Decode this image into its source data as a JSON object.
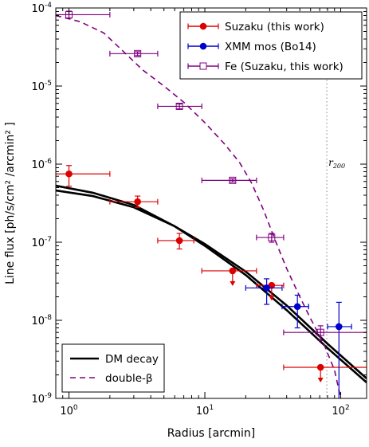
{
  "chart_data": {
    "type": "scatter",
    "xlabel": "Radius [arcmin]",
    "ylabel": "Line flux [ph/s/cm² /arcmin² ]",
    "xscale": "log",
    "yscale": "log",
    "xlim": [
      0.8,
      155
    ],
    "ylim": [
      1e-09,
      0.0001
    ],
    "x_ticks": [
      {
        "value": 1,
        "base": "10",
        "exp": "0"
      },
      {
        "value": 10,
        "base": "10",
        "exp": "1"
      },
      {
        "value": 100,
        "base": "10",
        "exp": "2"
      }
    ],
    "y_ticks": [
      {
        "value": 1e-09,
        "base": "10",
        "exp": "-9"
      },
      {
        "value": 1e-08,
        "base": "10",
        "exp": "-8"
      },
      {
        "value": 1e-07,
        "base": "10",
        "exp": "-7"
      },
      {
        "value": 1e-06,
        "base": "10",
        "exp": "-6"
      },
      {
        "value": 1e-05,
        "base": "10",
        "exp": "-5"
      },
      {
        "value": 0.0001,
        "base": "10",
        "exp": "-4"
      }
    ],
    "grid": false,
    "legend_upper_position": "top-right",
    "legend_lower_position": "bottom-left",
    "annotation": {
      "text": "r",
      "sub": "200",
      "x": 79
    },
    "series": [
      {
        "name": "Suzaku (this work)",
        "kind": "errorbar",
        "color": "#dd0000",
        "marker": "circle",
        "points": [
          {
            "x": 1.0,
            "y": 7.5e-07,
            "xlo": 0.8,
            "xhi": 2.0,
            "ylo": 5.2e-07,
            "yhi": 9.6e-07
          },
          {
            "x": 3.2,
            "y": 3.3e-07,
            "xlo": 2.0,
            "xhi": 4.5,
            "ylo": 2.8e-07,
            "yhi": 3.9e-07
          },
          {
            "x": 6.5,
            "y": 1.05e-07,
            "xlo": 4.5,
            "xhi": 8.3,
            "ylo": 8.2e-08,
            "yhi": 1.3e-07
          },
          {
            "x": 16,
            "y": 4.3e-08,
            "xlo": 9.5,
            "xhi": 24,
            "ylo": null,
            "yhi": null,
            "upper_limit": true
          },
          {
            "x": 31,
            "y": 2.8e-08,
            "xlo": 24,
            "xhi": 38,
            "ylo": null,
            "yhi": null,
            "upper_limit": true
          },
          {
            "x": 71,
            "y": 2.5e-09,
            "xlo": 38,
            "xhi": 155,
            "ylo": null,
            "yhi": null,
            "upper_limit": true
          }
        ]
      },
      {
        "name": "XMM mos (Bo14)",
        "kind": "errorbar",
        "color": "#0000cc",
        "marker": "circle",
        "points": [
          {
            "x": 28.5,
            "y": 2.6e-08,
            "xlo": 20,
            "xhi": 37,
            "ylo": 1.6e-08,
            "yhi": 3.4e-08
          },
          {
            "x": 48,
            "y": 1.5e-08,
            "xlo": 37,
            "xhi": 58,
            "ylo": 8e-09,
            "yhi": 2.1e-08
          },
          {
            "x": 97,
            "y": 8.3e-09,
            "xlo": 80,
            "xhi": 120,
            "ylo": 8e-10,
            "yhi": 1.7e-08
          }
        ]
      },
      {
        "name": "Fe (Suzaku, this work)",
        "kind": "errorbar",
        "color": "#800080",
        "marker": "open-square",
        "points": [
          {
            "x": 1.0,
            "y": 8.2e-05,
            "xlo": 0.8,
            "xhi": 2.0,
            "ylo": 7.4e-05,
            "yhi": 9.1e-05
          },
          {
            "x": 3.2,
            "y": 2.6e-05,
            "xlo": 2.0,
            "xhi": 4.5,
            "ylo": 2.45e-05,
            "yhi": 2.75e-05
          },
          {
            "x": 6.5,
            "y": 5.5e-06,
            "xlo": 4.5,
            "xhi": 9.5,
            "ylo": 5.1e-06,
            "yhi": 5.9e-06
          },
          {
            "x": 16,
            "y": 6.2e-07,
            "xlo": 9.5,
            "xhi": 24,
            "ylo": 5.9e-07,
            "yhi": 6.5e-07
          },
          {
            "x": 31,
            "y": 1.15e-07,
            "xlo": 24,
            "xhi": 38,
            "ylo": 1e-07,
            "yhi": 1.3e-07
          },
          {
            "x": 71,
            "y": 7e-09,
            "xlo": 38,
            "xhi": 155,
            "ylo": 5.5e-09,
            "yhi": 8.5e-09
          }
        ]
      },
      {
        "name": "DM decay",
        "kind": "line",
        "color": "#000000",
        "width": 2.6,
        "curves": [
          {
            "x": [
              0.8,
              1.5,
              3,
              6,
              10,
              20,
              40,
              80,
              155
            ],
            "y": [
              5.3e-07,
              4.3e-07,
              3e-07,
              1.6e-07,
              9e-08,
              3.8e-08,
              1.35e-08,
              4.4e-09,
              1.6e-09
            ]
          },
          {
            "x": [
              0.8,
              1.5,
              3,
              6,
              10,
              20,
              40,
              80,
              155
            ],
            "y": [
              4.6e-07,
              3.9e-07,
              2.8e-07,
              1.6e-07,
              9.5e-08,
              4.2e-08,
              1.55e-08,
              5e-09,
              1.8e-09
            ]
          }
        ]
      },
      {
        "name": "double-β",
        "kind": "line",
        "color": "#800080",
        "dash": "7,5",
        "width": 1.6,
        "curves": [
          {
            "x": [
              0.8,
              1.2,
              1.8,
              2.5,
              3.5,
              5,
              7,
              10,
              14,
              18,
              22,
              27,
              33,
              40,
              50,
              60,
              75,
              90,
              100
            ],
            "y": [
              8e-05,
              6.7e-05,
              4.8e-05,
              2.8e-05,
              1.6e-05,
              1e-05,
              6.2e-06,
              3.4e-06,
              1.8e-06,
              1.05e-06,
              5.8e-07,
              2.6e-07,
              1.05e-07,
              4.6e-08,
              2e-08,
              1.05e-08,
              5e-09,
              2.3e-09,
              1e-09
            ]
          }
        ]
      }
    ]
  }
}
